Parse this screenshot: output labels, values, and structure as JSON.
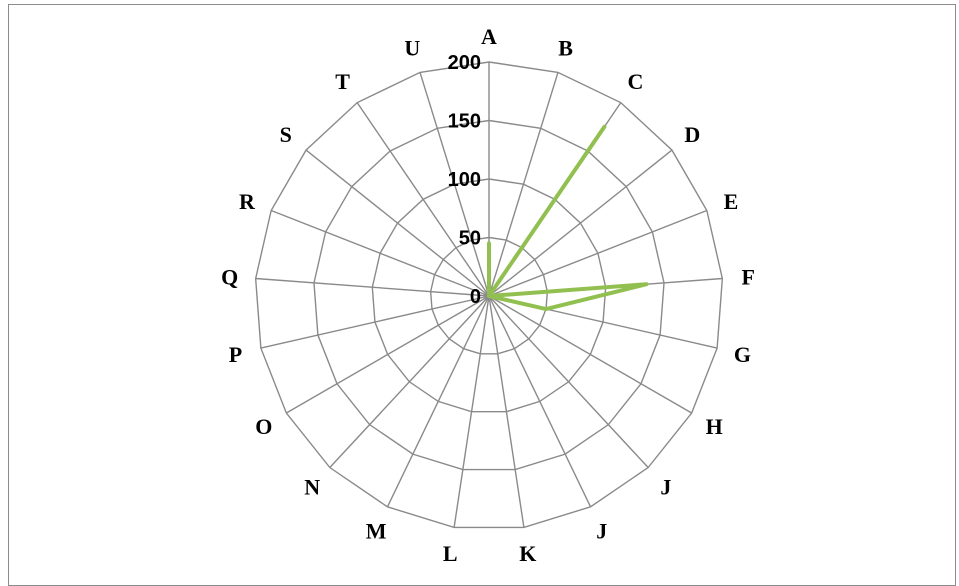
{
  "chart_data": {
    "type": "radar",
    "categories": [
      "A",
      "B",
      "C",
      "D",
      "E",
      "F",
      "G",
      "H",
      "J",
      "J",
      "K",
      "L",
      "M",
      "N",
      "O",
      "P",
      "Q",
      "R",
      "S",
      "T",
      "U"
    ],
    "series": [
      {
        "values": [
          45,
          0,
          175,
          0,
          0,
          135,
          50,
          0,
          0,
          0,
          0,
          0,
          0,
          0,
          0,
          0,
          0,
          0,
          0,
          0,
          0
        ],
        "color": "#92C050"
      }
    ],
    "rlim": [
      0,
      200
    ],
    "ticks": [
      0,
      50,
      100,
      150,
      200
    ],
    "tick_labels": [
      "0",
      "50",
      "100",
      "150",
      "200"
    ],
    "grid": true,
    "legend": "none",
    "grid_color": "#8A8A8A"
  }
}
